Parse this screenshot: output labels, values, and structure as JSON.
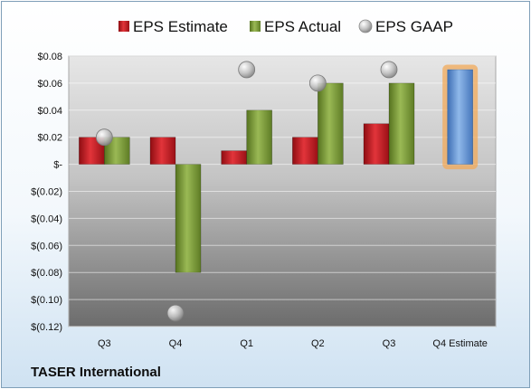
{
  "company": "TASER International",
  "chart_data": {
    "type": "bar",
    "categories": [
      "Q3",
      "Q4",
      "Q1",
      "Q2",
      "Q3",
      "Q4 Estimate"
    ],
    "series": [
      {
        "name": "EPS Estimate",
        "values": [
          0.02,
          0.02,
          0.01,
          0.02,
          0.03,
          null
        ],
        "color": "#c0171f"
      },
      {
        "name": "EPS Actual",
        "values": [
          0.02,
          -0.08,
          0.04,
          0.06,
          0.06,
          0.07
        ],
        "color": "#7a9a3a",
        "last_point_color": "#5b8fd1",
        "last_point_highlight": "#f2a95a"
      },
      {
        "name": "EPS GAAP",
        "values": [
          0.02,
          -0.11,
          0.07,
          0.06,
          0.07,
          null
        ],
        "color": "#b5b5b5",
        "marker": "circle"
      }
    ],
    "ylim": [
      -0.12,
      0.08
    ],
    "yticks": [
      0.08,
      0.06,
      0.04,
      0.02,
      0,
      -0.02,
      -0.04,
      -0.06,
      -0.08,
      -0.1,
      -0.12
    ],
    "ytick_labels": [
      "$0.08",
      "$0.06",
      "$0.04",
      "$0.02",
      "$-",
      "$(0.02)",
      "$(0.04)",
      "$(0.06)",
      "$(0.08)",
      "$(0.10)",
      "$(0.12)"
    ],
    "grid": true,
    "legend": "top",
    "title": "",
    "xlabel": "",
    "ylabel": ""
  }
}
